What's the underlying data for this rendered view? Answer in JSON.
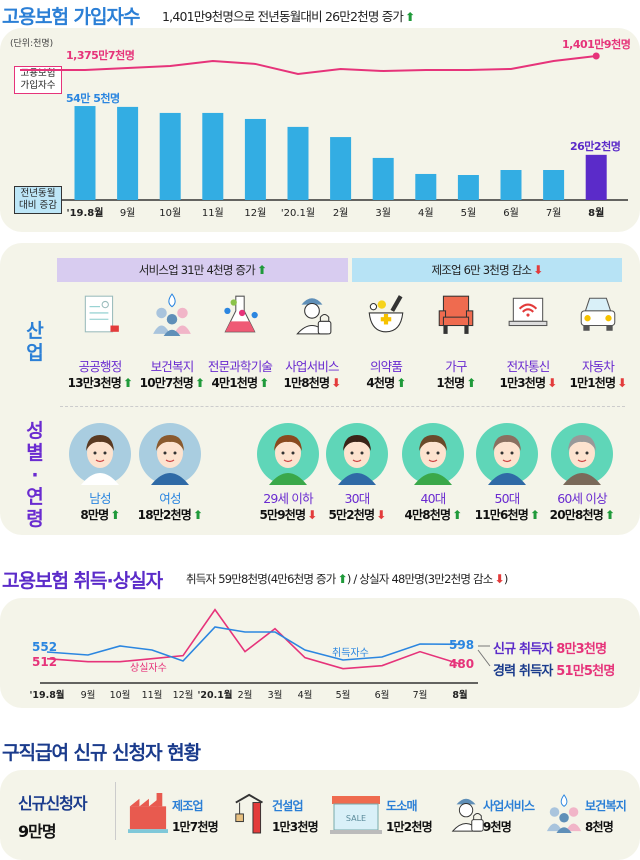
{
  "section1": {
    "title": "고용보험 가입자수",
    "subtitle": "1,401만9천명으로 전년동월대비 26만2천명 증가",
    "subtitle_trend": "up",
    "unit": "(단위:천명)",
    "line_label": "고용보험\n가입자수",
    "line_label_lines": [
      "고용보험",
      "가입자수"
    ],
    "bar_label_lines": [
      "전년동월",
      "대비 증감"
    ],
    "start_line_label": "1,375만7천명",
    "end_line_label": "1,401만9천명",
    "start_bar_label": "54만 5천명",
    "end_bar_label": "26만2천명"
  },
  "chart_data": [
    {
      "type": "bar",
      "title": "고용보험 가입자수",
      "categories": [
        "'19.8월",
        "9월",
        "10월",
        "11월",
        "12월",
        "'20.1월",
        "2월",
        "3월",
        "4월",
        "5월",
        "6월",
        "7월",
        "8월"
      ],
      "series": [
        {
          "name": "고용보험 가입자수",
          "type": "line",
          "values": [
            13757,
            13795,
            13832,
            13925,
            13870,
            13682,
            13776,
            13738,
            13757,
            13757,
            13776,
            13925,
            14019
          ]
        },
        {
          "name": "전년동월 대비 증감",
          "type": "bar",
          "values": [
            545,
            540,
            505,
            505,
            470,
            424,
            365,
            244,
            151,
            145,
            174,
            174,
            262
          ]
        }
      ],
      "unit": "천명",
      "colors": {
        "line": "#e6337a",
        "bar": "#33ade3",
        "bar_highlight": "#5b2bc9"
      }
    },
    {
      "type": "line",
      "title": "고용보험 취득·상실자",
      "categories": [
        "'19.8월",
        "9월",
        "10월",
        "11월",
        "12월",
        "'20.1월",
        "2월",
        "3월",
        "4월",
        "5월",
        "6월",
        "7월",
        "8월"
      ],
      "series": [
        {
          "name": "취득자수",
          "values": [
            552,
            534,
            588,
            564,
            498,
            702,
            672,
            672,
            564,
            504,
            522,
            600,
            598
          ],
          "color": "#2b86e0"
        },
        {
          "name": "상실자수",
          "values": [
            512,
            494,
            494,
            512,
            530,
            806,
            554,
            692,
            518,
            452,
            470,
            554,
            480
          ],
          "color": "#e6337a"
        }
      ],
      "unit": "천명"
    }
  ],
  "industry": {
    "label": "산업",
    "service_header": "서비스업 31만 4천명 증가",
    "manufacturing_header": "제조업 6만 3천명 감소",
    "items": [
      {
        "name": "공공행정",
        "value": "13만3천명",
        "trend": "up",
        "icon": "document-icon"
      },
      {
        "name": "보건복지",
        "value": "10만7천명",
        "trend": "up",
        "icon": "people-care-icon"
      },
      {
        "name": "전문과학기술",
        "value": "4만1천명",
        "trend": "up",
        "icon": "flask-icon"
      },
      {
        "name": "사업서비스",
        "value": "1만8천명",
        "trend": "down",
        "icon": "security-guard-icon"
      },
      {
        "name": "의약품",
        "value": "4천명",
        "trend": "up",
        "icon": "mortar-pestle-icon"
      },
      {
        "name": "가구",
        "value": "1천명",
        "trend": "up",
        "icon": "chair-icon"
      },
      {
        "name": "전자통신",
        "value": "1만3천명",
        "trend": "down",
        "icon": "laptop-wifi-icon"
      },
      {
        "name": "자동차",
        "value": "1만1천명",
        "trend": "down",
        "icon": "car-icon"
      }
    ]
  },
  "demographics": {
    "label": "성별·연령",
    "items": [
      {
        "name": "남성",
        "value": "8만명",
        "trend": "up"
      },
      {
        "name": "여성",
        "value": "18만2천명",
        "trend": "up"
      },
      {
        "name": "29세 이하",
        "value": "5만9천명",
        "trend": "down"
      },
      {
        "name": "30대",
        "value": "5만2천명",
        "trend": "down"
      },
      {
        "name": "40대",
        "value": "4만8천명",
        "trend": "up"
      },
      {
        "name": "50대",
        "value": "11만6천명",
        "trend": "up"
      },
      {
        "name": "60세 이상",
        "value": "20만8천명",
        "trend": "up"
      }
    ]
  },
  "section2": {
    "title": "고용보험 취득·상실자",
    "subtitle_a": "취득자 59만8천명(4만6천명 증가",
    "subtitle_b": ") / 상실자 48만명(3만2천명 감소",
    "subtitle_c": ")",
    "acq_label": "취득자수",
    "loss_label": "상실자수",
    "acq_start": "552",
    "acq_end": "598",
    "loss_start": "512",
    "loss_end": "480",
    "new_label": "신규 취득자",
    "new_value": "8만3천명",
    "career_label": "경력 취득자",
    "career_value": "51만5천명"
  },
  "section3": {
    "title": "구직급여 신규 신청자 현황",
    "total_label": "신규신청자",
    "total_value": "9만명",
    "items": [
      {
        "name": "제조업",
        "value": "1만7천명"
      },
      {
        "name": "건설업",
        "value": "1만3천명"
      },
      {
        "name": "도소매",
        "value": "1만2천명",
        "sign": "SALE"
      },
      {
        "name": "사업서비스",
        "value": "9천명"
      },
      {
        "name": "보건복지",
        "value": "8천명"
      }
    ]
  },
  "arrows": {
    "up": "⬆",
    "down": "⬇"
  }
}
